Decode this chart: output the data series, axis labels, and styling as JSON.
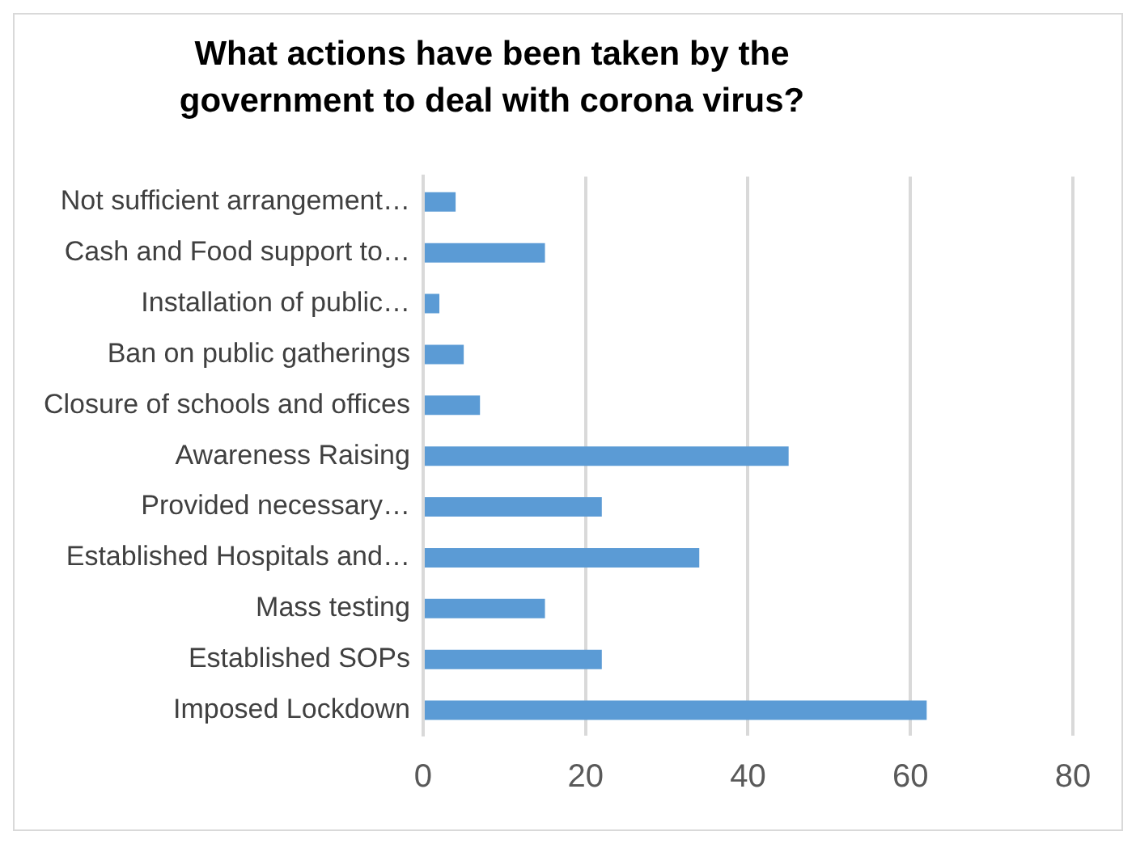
{
  "chart_data": {
    "type": "bar",
    "orientation": "horizontal",
    "title": "What actions have been taken by the government to deal with corona virus?",
    "categories": [
      "Not sufficient arrangement…",
      "Cash and Food support to…",
      "Installation of public…",
      "Ban on public gatherings",
      "Closure of schools and offices",
      "Awareness Raising",
      "Provided necessary…",
      "Established Hospitals and…",
      "Mass testing",
      "Established SOPs",
      "Imposed Lockdown"
    ],
    "values": [
      4,
      15,
      2,
      5,
      7,
      45,
      22,
      34,
      15,
      22,
      62
    ],
    "color": "#5b9bd5",
    "xlim": [
      0,
      80
    ],
    "xticks": [
      0,
      20,
      40,
      60,
      80
    ],
    "grid": "x",
    "legend": false
  }
}
